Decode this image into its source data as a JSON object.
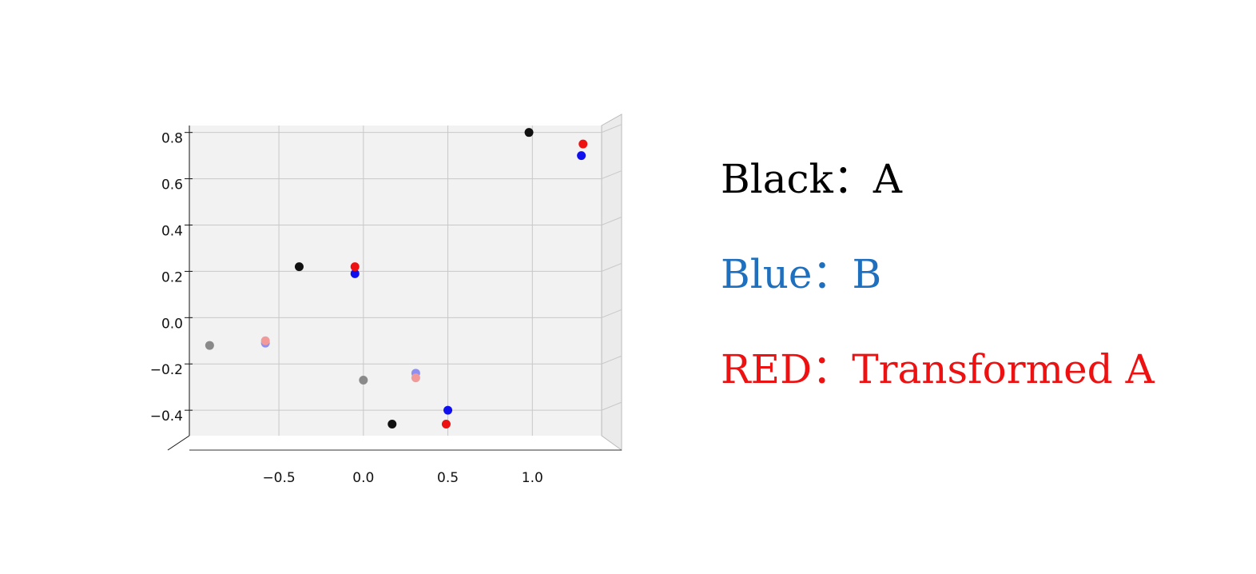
{
  "chart_data": {
    "type": "scatter",
    "xlim": [
      -1.03,
      1.41
    ],
    "ylim": [
      -0.51,
      0.83
    ],
    "xticks": [
      {
        "value": -0.5,
        "label": "−0.5"
      },
      {
        "value": 0,
        "label": "0.0"
      },
      0.5,
      {
        "value": 1,
        "label": "1.0"
      }
    ],
    "yticks": [
      {
        "value": -0.4,
        "label": "−0.4"
      },
      {
        "value": -0.2,
        "label": "−0.2"
      },
      {
        "value": 0,
        "label": "0.0"
      },
      0.2,
      0.4,
      0.6,
      0.8
    ],
    "grid": true,
    "series": [
      {
        "name": "Black：A",
        "color": "#000000",
        "point_colors": [
          "#111111",
          "#111111",
          "#111111",
          "#8a8a8a",
          "#8a8a8a"
        ],
        "x": [
          0.98,
          -0.38,
          0.17,
          -0.91,
          0.0
        ],
        "values": [
          0.8,
          0.22,
          -0.46,
          -0.12,
          -0.27
        ]
      },
      {
        "name": "Blue：B",
        "color": "#1f6fbf",
        "point_colors": [
          "#1010ee",
          "#1010ee",
          "#1010ee",
          "#8f8ff0",
          "#8f8ff0"
        ],
        "x": [
          1.29,
          -0.05,
          0.5,
          -0.58,
          0.31
        ],
        "values": [
          0.7,
          0.19,
          -0.4,
          -0.11,
          -0.24
        ]
      },
      {
        "name": "RED：Transformed A",
        "color": "#ee1111",
        "point_colors": [
          "#ee1111",
          "#ee1111",
          "#ee1111",
          "#f29a9a",
          "#f29a9a"
        ],
        "x": [
          1.3,
          -0.05,
          0.49,
          -0.58,
          0.31
        ],
        "values": [
          0.75,
          0.22,
          -0.46,
          -0.1,
          -0.26
        ]
      }
    ]
  }
}
